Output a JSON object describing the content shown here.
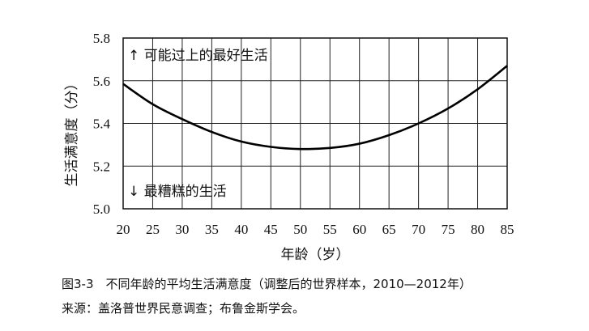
{
  "chart_data": {
    "type": "line",
    "xlabel": "年龄（岁）",
    "ylabel": "生活满意度（分）",
    "xlim": [
      20,
      85
    ],
    "ylim": [
      5.0,
      5.8
    ],
    "x_ticks": [
      20,
      25,
      30,
      35,
      40,
      45,
      50,
      55,
      60,
      65,
      70,
      75,
      80,
      85
    ],
    "y_ticks": [
      5.0,
      5.2,
      5.4,
      5.6,
      5.8
    ],
    "y_tick_labels": [
      "5.0",
      "5.2",
      "5.4",
      "5.6",
      "5.8"
    ],
    "grid": true,
    "series": [
      {
        "color": "#000000",
        "x": [
          20,
          25,
          30,
          35,
          40,
          45,
          50,
          55,
          60,
          65,
          70,
          75,
          80,
          85
        ],
        "y": [
          5.585,
          5.49,
          5.42,
          5.36,
          5.315,
          5.29,
          5.28,
          5.285,
          5.305,
          5.345,
          5.4,
          5.47,
          5.56,
          5.67
        ]
      }
    ],
    "annotations": [
      {
        "text": "↑ 可能过上的最好生活",
        "position": "top-left"
      },
      {
        "text": "↓ 最糟糕的生活",
        "position": "bottom-left"
      }
    ]
  },
  "caption": "图3-3　不同年龄的平均生活满意度（调整后的世界样本，2010—2012年）",
  "source": "来源：盖洛普世界民意调查；布鲁金斯学会。"
}
